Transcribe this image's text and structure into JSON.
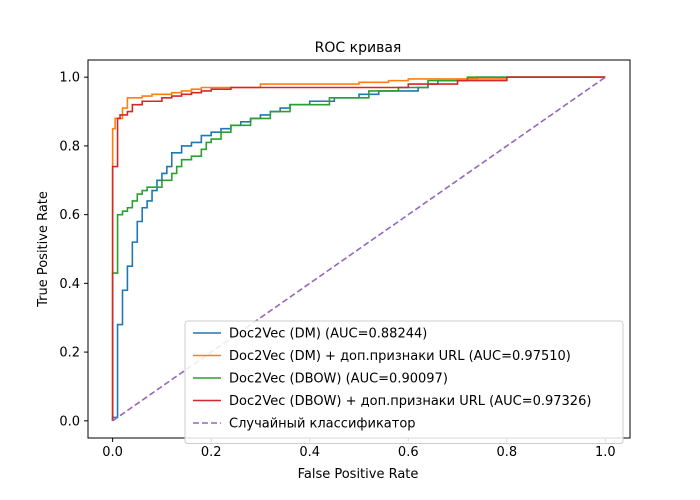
{
  "chart_data": {
    "type": "line",
    "title": "ROC кривая",
    "xlabel": "False Positive Rate",
    "ylabel": "True Positive Rate",
    "xlim": [
      -0.05,
      1.05
    ],
    "ylim": [
      -0.05,
      1.05
    ],
    "xticks": [
      0.0,
      0.2,
      0.4,
      0.6,
      0.8,
      1.0
    ],
    "yticks": [
      0.0,
      0.2,
      0.4,
      0.6,
      0.8,
      1.0
    ],
    "xtick_labels": [
      "0.0",
      "0.2",
      "0.4",
      "0.6",
      "0.8",
      "1.0"
    ],
    "ytick_labels": [
      "0.0",
      "0.2",
      "0.4",
      "0.6",
      "0.8",
      "1.0"
    ],
    "grid": false,
    "legend_position": "lower-right",
    "series": [
      {
        "name": "Doc2Vec (DM) (AUC=0.88244)",
        "color": "#1f77b4",
        "dash": "solid",
        "x": [
          0.0,
          0.0,
          0.01,
          0.01,
          0.02,
          0.02,
          0.03,
          0.03,
          0.04,
          0.04,
          0.05,
          0.05,
          0.06,
          0.06,
          0.07,
          0.07,
          0.08,
          0.08,
          0.09,
          0.09,
          0.1,
          0.1,
          0.11,
          0.11,
          0.12,
          0.12,
          0.14,
          0.14,
          0.16,
          0.16,
          0.18,
          0.18,
          0.2,
          0.2,
          0.22,
          0.22,
          0.24,
          0.24,
          0.26,
          0.26,
          0.28,
          0.28,
          0.3,
          0.3,
          0.32,
          0.32,
          0.34,
          0.34,
          0.36,
          0.36,
          0.4,
          0.4,
          0.45,
          0.45,
          0.5,
          0.5,
          0.54,
          0.54,
          0.62,
          0.62,
          0.64,
          0.64,
          0.66,
          0.66,
          0.72,
          0.72,
          0.74,
          0.74,
          0.8,
          0.8,
          0.85,
          0.85,
          1.0
        ],
        "y": [
          0.0,
          0.01,
          0.01,
          0.28,
          0.28,
          0.38,
          0.38,
          0.45,
          0.45,
          0.52,
          0.52,
          0.58,
          0.58,
          0.62,
          0.62,
          0.64,
          0.64,
          0.67,
          0.67,
          0.7,
          0.7,
          0.72,
          0.72,
          0.74,
          0.74,
          0.78,
          0.78,
          0.8,
          0.8,
          0.81,
          0.81,
          0.83,
          0.83,
          0.84,
          0.84,
          0.85,
          0.85,
          0.86,
          0.86,
          0.87,
          0.87,
          0.88,
          0.88,
          0.89,
          0.89,
          0.9,
          0.9,
          0.91,
          0.91,
          0.92,
          0.92,
          0.93,
          0.93,
          0.94,
          0.94,
          0.95,
          0.95,
          0.96,
          0.96,
          0.97,
          0.97,
          0.98,
          0.98,
          0.99,
          0.99,
          0.995,
          0.995,
          1.0,
          1.0,
          1.0,
          1.0,
          1.0,
          1.0
        ]
      },
      {
        "name": "Doc2Vec (DM) + доп.признаки URL (AUC=0.97510)",
        "color": "#ff7f0e",
        "dash": "solid",
        "x": [
          0.0,
          0.0,
          0.005,
          0.005,
          0.02,
          0.02,
          0.03,
          0.03,
          0.06,
          0.06,
          0.08,
          0.08,
          0.12,
          0.12,
          0.14,
          0.14,
          0.16,
          0.16,
          0.18,
          0.18,
          0.3,
          0.3,
          0.5,
          0.5,
          0.56,
          0.56,
          0.6,
          0.6,
          0.8,
          0.8,
          0.96,
          0.96,
          1.0
        ],
        "y": [
          0.0,
          0.85,
          0.85,
          0.88,
          0.88,
          0.91,
          0.91,
          0.94,
          0.94,
          0.945,
          0.945,
          0.95,
          0.95,
          0.955,
          0.955,
          0.96,
          0.96,
          0.965,
          0.965,
          0.97,
          0.97,
          0.98,
          0.98,
          0.985,
          0.985,
          0.99,
          0.99,
          0.995,
          0.995,
          1.0,
          1.0,
          1.0,
          1.0
        ]
      },
      {
        "name": "Doc2Vec (DBOW) (AUC=0.90097)",
        "color": "#2ca02c",
        "dash": "solid",
        "x": [
          0.0,
          0.0,
          0.01,
          0.01,
          0.02,
          0.02,
          0.03,
          0.03,
          0.04,
          0.04,
          0.05,
          0.05,
          0.06,
          0.06,
          0.07,
          0.07,
          0.1,
          0.1,
          0.12,
          0.12,
          0.13,
          0.13,
          0.14,
          0.14,
          0.16,
          0.16,
          0.18,
          0.18,
          0.19,
          0.19,
          0.2,
          0.2,
          0.22,
          0.22,
          0.24,
          0.24,
          0.28,
          0.28,
          0.32,
          0.32,
          0.36,
          0.36,
          0.44,
          0.44,
          0.52,
          0.52,
          0.58,
          0.58,
          0.64,
          0.64,
          0.72,
          0.72,
          1.0
        ],
        "y": [
          0.0,
          0.43,
          0.43,
          0.6,
          0.6,
          0.61,
          0.61,
          0.62,
          0.62,
          0.64,
          0.64,
          0.66,
          0.66,
          0.67,
          0.67,
          0.68,
          0.68,
          0.7,
          0.7,
          0.72,
          0.72,
          0.74,
          0.74,
          0.76,
          0.76,
          0.77,
          0.77,
          0.79,
          0.79,
          0.81,
          0.81,
          0.82,
          0.82,
          0.84,
          0.84,
          0.86,
          0.86,
          0.88,
          0.88,
          0.9,
          0.9,
          0.92,
          0.92,
          0.94,
          0.94,
          0.96,
          0.96,
          0.97,
          0.97,
          0.99,
          0.99,
          1.0,
          1.0
        ]
      },
      {
        "name": "Doc2Vec (DBOW) + доп.признаки URL (AUC=0.97326)",
        "color": "#d62728",
        "dash": "solid",
        "x": [
          0.0,
          0.0,
          0.01,
          0.01,
          0.015,
          0.015,
          0.03,
          0.03,
          0.04,
          0.04,
          0.06,
          0.06,
          0.1,
          0.1,
          0.12,
          0.12,
          0.14,
          0.14,
          0.16,
          0.16,
          0.18,
          0.18,
          0.2,
          0.2,
          0.24,
          0.24,
          0.6,
          0.6,
          0.7,
          0.7,
          0.8,
          0.8,
          1.0
        ],
        "y": [
          0.0,
          0.74,
          0.74,
          0.88,
          0.88,
          0.89,
          0.89,
          0.9,
          0.9,
          0.92,
          0.92,
          0.93,
          0.93,
          0.94,
          0.94,
          0.945,
          0.945,
          0.95,
          0.95,
          0.955,
          0.955,
          0.96,
          0.96,
          0.965,
          0.965,
          0.97,
          0.97,
          0.98,
          0.98,
          0.99,
          0.99,
          1.0,
          1.0
        ]
      },
      {
        "name": "Случайный классификатор",
        "color": "#9467bd",
        "dash": "dashed",
        "x": [
          0.0,
          1.0
        ],
        "y": [
          0.0,
          1.0
        ]
      }
    ]
  }
}
